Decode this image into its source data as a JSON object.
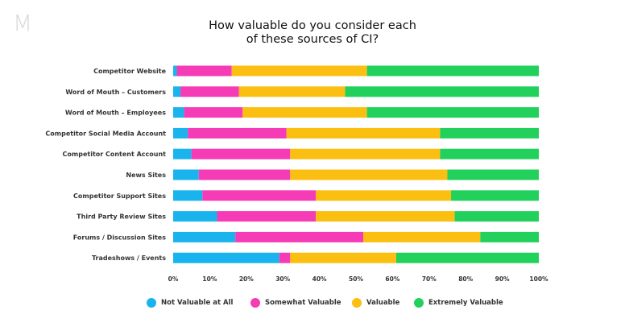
{
  "logo": "M",
  "title_lines": [
    "How valuable do you consider each",
    "of these sources of CI?"
  ],
  "colors": {
    "not_valuable": "#19b4ee",
    "somewhat": "#f53bb5",
    "valuable": "#fbbf12",
    "extremely": "#22d15c"
  },
  "chart_data": {
    "type": "bar",
    "orientation": "horizontal",
    "stacked": true,
    "title": "How valuable do you consider each of these sources of CI?",
    "categories": [
      "Competitor Website",
      "Word of Mouth – Customers",
      "Word of Mouth – Employees",
      "Competitor Social Media Account",
      "Competitor Content Account",
      "News Sites",
      "Competitor Support Sites",
      "Third Party Review Sites",
      "Forums / Discussion Sites",
      "Tradeshows / Events"
    ],
    "series": [
      {
        "name": "Not Valuable at All",
        "color": "#19b4ee",
        "values": [
          1,
          2,
          3,
          4,
          5,
          7,
          8,
          12,
          17,
          29
        ]
      },
      {
        "name": "Somewhat Valuable",
        "color": "#f53bb5",
        "values": [
          15,
          16,
          16,
          27,
          27,
          25,
          31,
          27,
          35,
          3
        ]
      },
      {
        "name": "Valuable",
        "color": "#fbbf12",
        "values": [
          37,
          29,
          34,
          42,
          41,
          43,
          37,
          38,
          32,
          29
        ]
      },
      {
        "name": "Extremely Valuable",
        "color": "#22d15c",
        "values": [
          47,
          53,
          47,
          27,
          27,
          25,
          24,
          23,
          16,
          39
        ]
      }
    ],
    "xlim": [
      0,
      100
    ],
    "xticks": [
      "0%",
      "10%",
      "20%",
      "30%",
      "40%",
      "50%",
      "60%",
      "70%",
      "80%",
      "90%",
      "100%"
    ],
    "grid": false,
    "legend_position": "bottom"
  }
}
